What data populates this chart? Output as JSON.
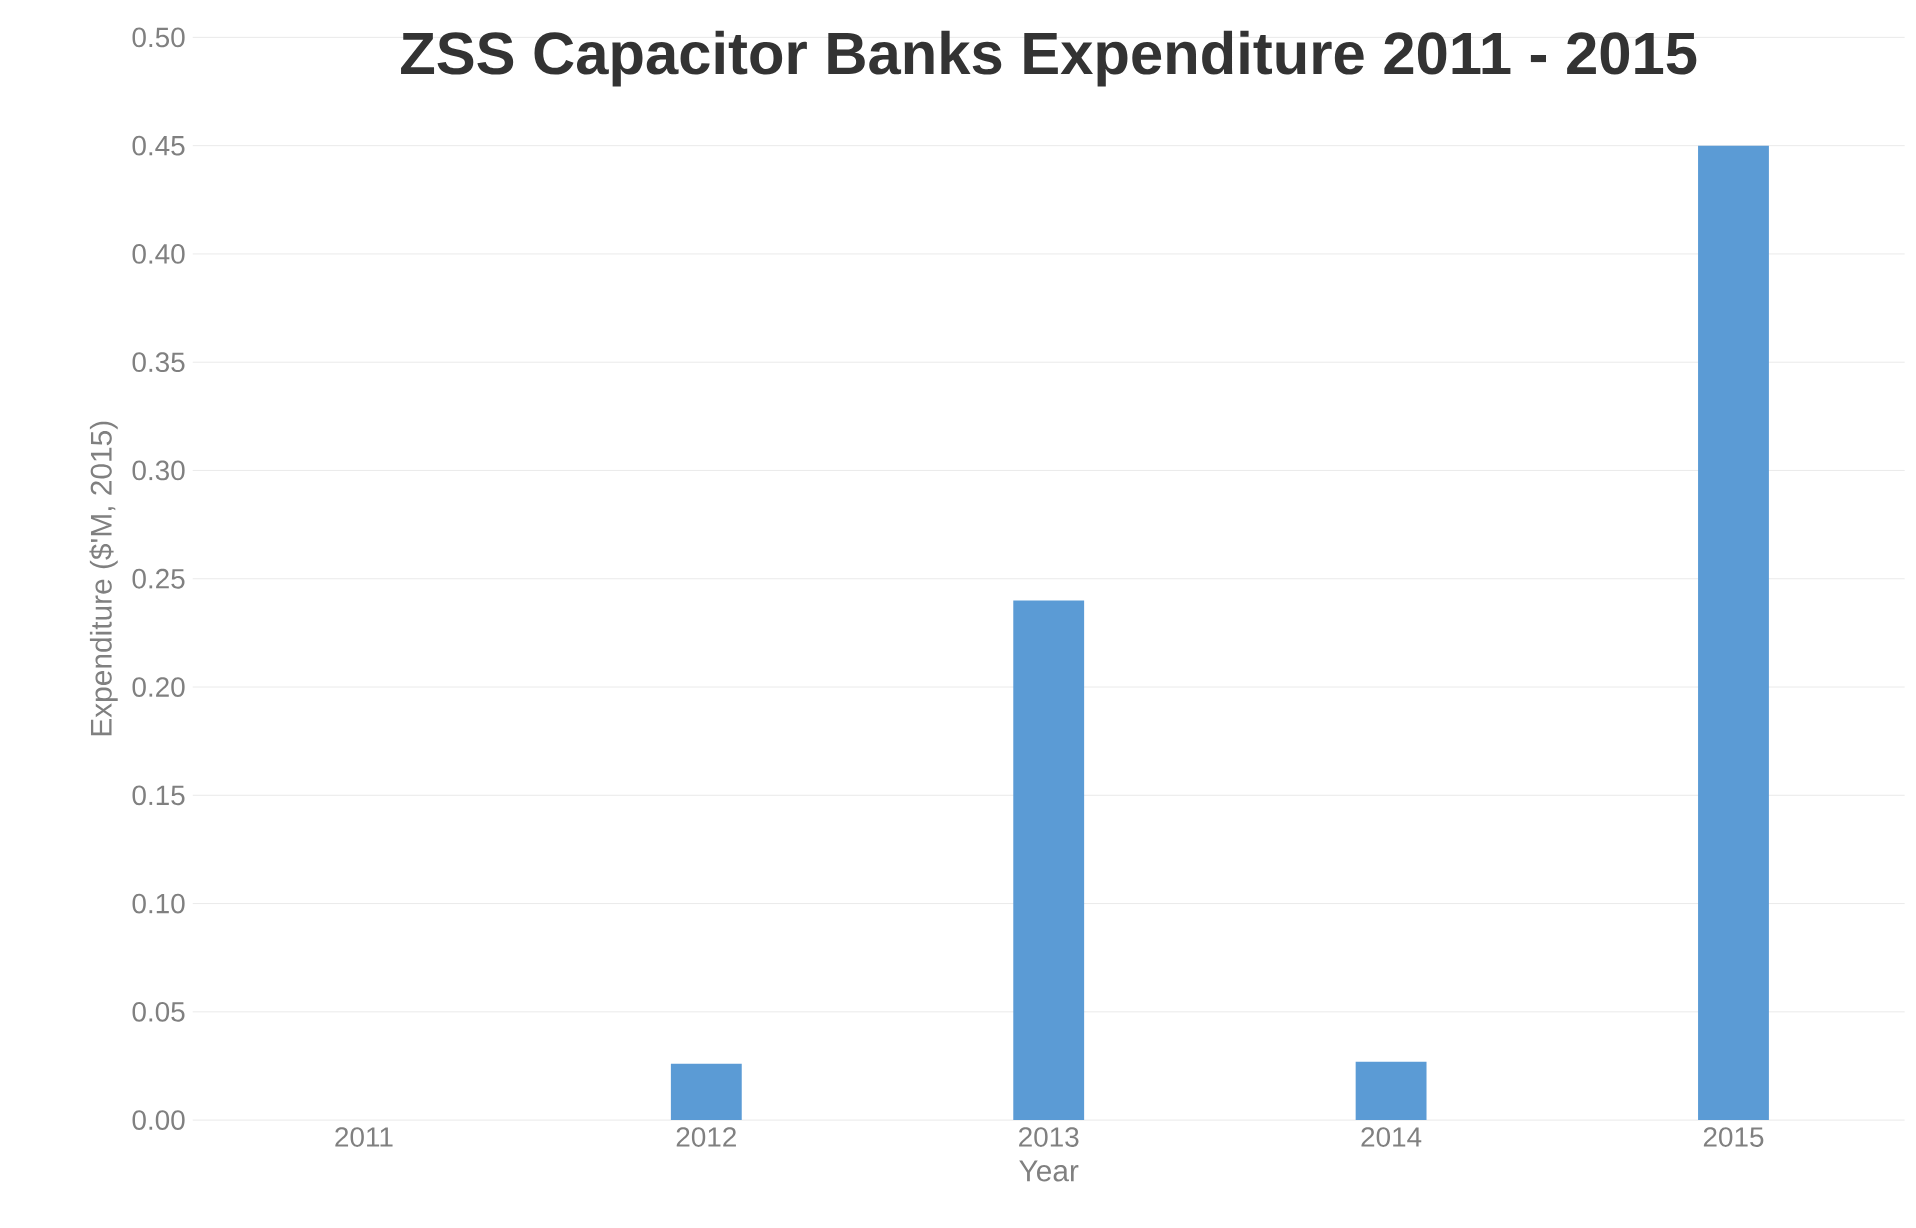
{
  "chart_data": {
    "type": "bar",
    "title": "ZSS Capacitor Banks Expenditure 2011 - 2015",
    "xlabel": "Year",
    "ylabel": "Expenditure ($'M, 2015)",
    "categories": [
      "2011",
      "2012",
      "2013",
      "2014",
      "2015"
    ],
    "values": [
      0,
      0.026,
      0.24,
      0.027,
      0.45
    ],
    "color": "#5b9bd5",
    "ylim": [
      0,
      0.5
    ],
    "yticks": [
      {
        "value": 0,
        "label": "0.00"
      },
      {
        "value": 0.05,
        "label": "0.05"
      },
      {
        "value": 0.1,
        "label": "0.10"
      },
      {
        "value": 0.15,
        "label": "0.15"
      },
      {
        "value": 0.2,
        "label": "0.20"
      },
      {
        "value": 0.25,
        "label": "0.25"
      },
      {
        "value": 0.3,
        "label": "0.30"
      },
      {
        "value": 0.35,
        "label": "0.35"
      },
      {
        "value": 0.4,
        "label": "0.40"
      },
      {
        "value": 0.45,
        "label": "0.45"
      },
      {
        "value": 0.5,
        "label": "0.50"
      }
    ],
    "grid": "y"
  }
}
